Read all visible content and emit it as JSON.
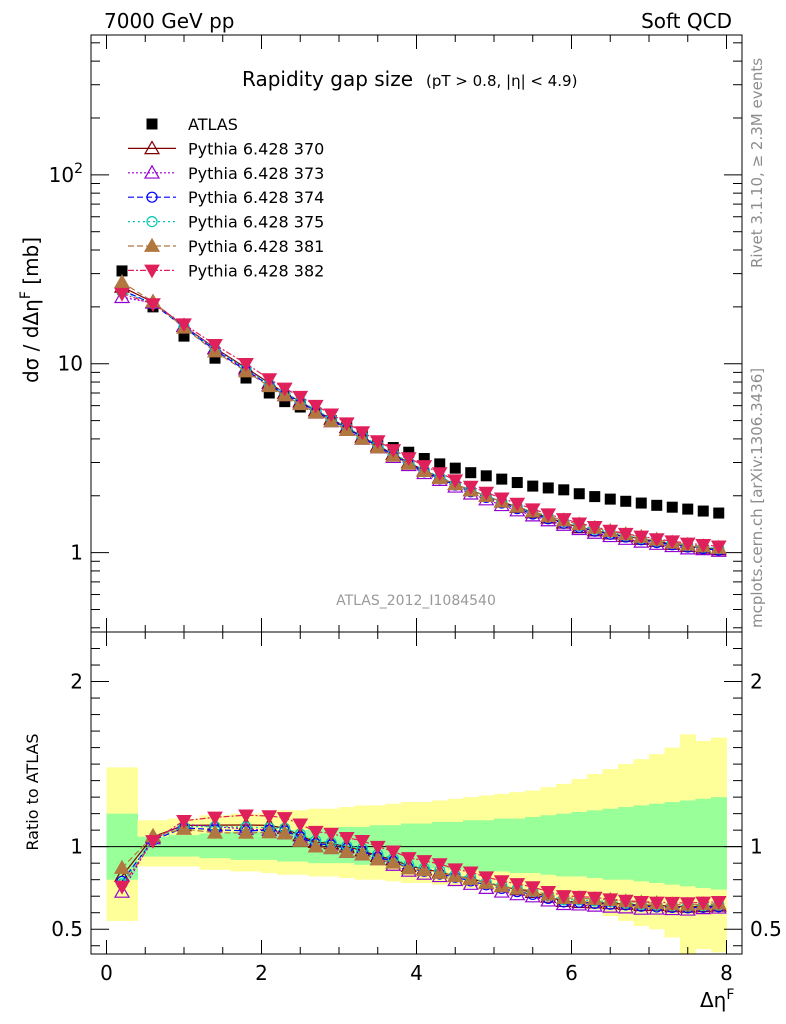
{
  "header": {
    "left": "7000 GeV pp",
    "right": "Soft QCD"
  },
  "side_labels": {
    "rivet": "Rivet 3.1.10, ≥ 2.3M events",
    "mcplots": "mcplots.cern.ch [arXiv:1306.3436]"
  },
  "chart_data": [
    {
      "type": "scatter",
      "panel": "main",
      "title": "Rapidity gap size",
      "subtitle": "(pT > 0.8, |η| < 4.9)",
      "ylabel": "dσ / dΔηF [mb]",
      "watermark": "ATLAS_2012_I1084540",
      "y_scale": "log",
      "xlim": [
        -0.2,
        8.2
      ],
      "ylim": [
        0.38,
        550
      ],
      "y_ticks": [
        "1",
        "10",
        "10²"
      ],
      "x": [
        0.2,
        0.6,
        1.0,
        1.4,
        1.8,
        2.1,
        2.3,
        2.5,
        2.7,
        2.9,
        3.1,
        3.3,
        3.5,
        3.7,
        3.9,
        4.1,
        4.3,
        4.5,
        4.7,
        4.9,
        5.1,
        5.3,
        5.5,
        5.7,
        5.9,
        6.1,
        6.3,
        6.5,
        6.7,
        6.9,
        7.1,
        7.3,
        7.5,
        7.7,
        7.9
      ],
      "series": [
        {
          "name": "ATLAS",
          "marker": "square-filled",
          "color": "#000000",
          "values": [
            31,
            20,
            14,
            10.7,
            8.4,
            7.0,
            6.3,
            5.9,
            5.5,
            5.0,
            4.6,
            4.2,
            3.9,
            3.6,
            3.4,
            3.15,
            2.95,
            2.8,
            2.65,
            2.55,
            2.45,
            2.35,
            2.25,
            2.2,
            2.15,
            2.05,
            1.98,
            1.92,
            1.87,
            1.83,
            1.78,
            1.74,
            1.7,
            1.66,
            1.62
          ]
        },
        {
          "name": "Pythia 6.428 370",
          "marker": "triangle-open",
          "color": "#7f0000",
          "dash": "",
          "values": [
            25.5,
            21.2,
            15.8,
            12.1,
            9.5,
            7.9,
            7.0,
            6.3,
            5.65,
            5.1,
            4.6,
            4.1,
            3.68,
            3.32,
            3.0,
            2.72,
            2.5,
            2.3,
            2.14,
            1.99,
            1.86,
            1.74,
            1.63,
            1.53,
            1.44,
            1.36,
            1.31,
            1.26,
            1.22,
            1.18,
            1.15,
            1.11,
            1.08,
            1.06,
            1.04
          ]
        },
        {
          "name": "Pythia 6.428 373",
          "marker": "triangle-open",
          "color": "#9400d3",
          "dash": "2,2",
          "values": [
            22.5,
            21.0,
            15.9,
            12.0,
            9.3,
            7.7,
            6.8,
            6.15,
            5.5,
            4.95,
            4.45,
            4.0,
            3.6,
            3.2,
            2.9,
            2.63,
            2.42,
            2.23,
            2.05,
            1.91,
            1.78,
            1.67,
            1.57,
            1.48,
            1.4,
            1.33,
            1.27,
            1.22,
            1.18,
            1.14,
            1.11,
            1.08,
            1.05,
            1.04,
            1.02
          ]
        },
        {
          "name": "Pythia 6.428 374",
          "marker": "circle-open",
          "color": "#0000ff",
          "dash": "6,3",
          "values": [
            24.5,
            20.8,
            15.6,
            11.8,
            9.2,
            7.7,
            6.9,
            6.25,
            5.6,
            5.05,
            4.55,
            4.08,
            3.65,
            3.28,
            2.95,
            2.68,
            2.46,
            2.28,
            2.1,
            1.96,
            1.83,
            1.71,
            1.6,
            1.51,
            1.43,
            1.36,
            1.3,
            1.25,
            1.21,
            1.17,
            1.13,
            1.1,
            1.07,
            1.05,
            1.03
          ]
        },
        {
          "name": "Pythia 6.428 375",
          "marker": "circle-open",
          "color": "#00c8b4",
          "dash": "2,3",
          "values": [
            24.0,
            20.9,
            15.7,
            12.0,
            9.4,
            7.8,
            7.0,
            6.35,
            5.7,
            5.12,
            4.62,
            4.15,
            3.72,
            3.34,
            3.02,
            2.74,
            2.52,
            2.32,
            2.15,
            2.0,
            1.87,
            1.75,
            1.64,
            1.55,
            1.46,
            1.39,
            1.33,
            1.28,
            1.23,
            1.19,
            1.15,
            1.12,
            1.09,
            1.07,
            1.05
          ]
        },
        {
          "name": "Pythia 6.428 381",
          "marker": "triangle-filled",
          "color": "#b07840",
          "dash": "6,3",
          "values": [
            27.0,
            21.3,
            15.5,
            11.6,
            9.1,
            7.6,
            6.8,
            6.1,
            5.5,
            4.95,
            4.45,
            4.0,
            3.6,
            3.25,
            2.95,
            2.7,
            2.48,
            2.3,
            2.13,
            1.99,
            1.86,
            1.75,
            1.65,
            1.56,
            1.48,
            1.41,
            1.35,
            1.3,
            1.25,
            1.21,
            1.17,
            1.13,
            1.1,
            1.08,
            1.06
          ]
        },
        {
          "name": "Pythia 6.428 382",
          "marker": "triangle-down-filled",
          "color": "#e0205a",
          "dash": "6,2,2,2",
          "values": [
            23.5,
            20.7,
            16.2,
            12.6,
            10.0,
            8.3,
            7.4,
            6.7,
            6.0,
            5.4,
            4.85,
            4.35,
            3.9,
            3.5,
            3.17,
            2.88,
            2.64,
            2.42,
            2.24,
            2.08,
            1.94,
            1.82,
            1.7,
            1.6,
            1.51,
            1.43,
            1.37,
            1.31,
            1.26,
            1.22,
            1.18,
            1.15,
            1.12,
            1.1,
            1.08
          ]
        }
      ]
    },
    {
      "type": "scatter",
      "panel": "ratio",
      "ylabel": "Ratio to ATLAS",
      "xlabel": "ΔηF",
      "xlim": [
        -0.2,
        8.2
      ],
      "ylim": [
        0.35,
        2.3
      ],
      "x_ticks": [
        "0",
        "2",
        "4",
        "6",
        "8"
      ],
      "y_ticks": [
        "0.5",
        "1",
        "2"
      ],
      "bands": {
        "bin_edges": [
          0,
          0.4,
          0.8,
          1.2,
          1.6,
          2.0,
          2.2,
          2.4,
          2.6,
          2.8,
          3.0,
          3.2,
          3.4,
          3.6,
          3.8,
          4.0,
          4.2,
          4.4,
          4.6,
          4.8,
          5.0,
          5.2,
          5.4,
          5.6,
          5.8,
          6.0,
          6.2,
          6.4,
          6.6,
          6.8,
          7.0,
          7.2,
          7.4,
          7.6,
          7.8,
          8.0
        ],
        "yellow_lo": [
          0.55,
          0.88,
          0.88,
          0.86,
          0.85,
          0.84,
          0.83,
          0.83,
          0.82,
          0.82,
          0.81,
          0.8,
          0.8,
          0.79,
          0.78,
          0.78,
          0.77,
          0.76,
          0.75,
          0.74,
          0.73,
          0.72,
          0.71,
          0.7,
          0.68,
          0.65,
          0.62,
          0.58,
          0.55,
          0.52,
          0.5,
          0.45,
          0.35,
          0.38,
          0.36
        ],
        "yellow_hi": [
          1.48,
          1.16,
          1.17,
          1.19,
          1.2,
          1.21,
          1.22,
          1.22,
          1.23,
          1.23,
          1.24,
          1.25,
          1.25,
          1.26,
          1.27,
          1.27,
          1.28,
          1.29,
          1.3,
          1.31,
          1.32,
          1.33,
          1.34,
          1.36,
          1.38,
          1.41,
          1.44,
          1.47,
          1.5,
          1.53,
          1.56,
          1.6,
          1.68,
          1.64,
          1.66
        ],
        "green_lo": [
          0.8,
          0.94,
          0.94,
          0.93,
          0.92,
          0.92,
          0.91,
          0.91,
          0.9,
          0.9,
          0.9,
          0.89,
          0.89,
          0.88,
          0.88,
          0.87,
          0.87,
          0.86,
          0.86,
          0.85,
          0.85,
          0.84,
          0.84,
          0.83,
          0.82,
          0.82,
          0.81,
          0.8,
          0.8,
          0.79,
          0.78,
          0.77,
          0.76,
          0.75,
          0.74
        ],
        "green_hi": [
          1.2,
          1.06,
          1.07,
          1.08,
          1.09,
          1.09,
          1.1,
          1.1,
          1.11,
          1.11,
          1.12,
          1.12,
          1.13,
          1.13,
          1.14,
          1.14,
          1.15,
          1.15,
          1.16,
          1.16,
          1.17,
          1.17,
          1.18,
          1.19,
          1.2,
          1.21,
          1.22,
          1.23,
          1.24,
          1.25,
          1.26,
          1.27,
          1.28,
          1.29,
          1.3
        ],
        "yellow_color": "#ffff99",
        "green_color": "#99ff99"
      }
    }
  ]
}
